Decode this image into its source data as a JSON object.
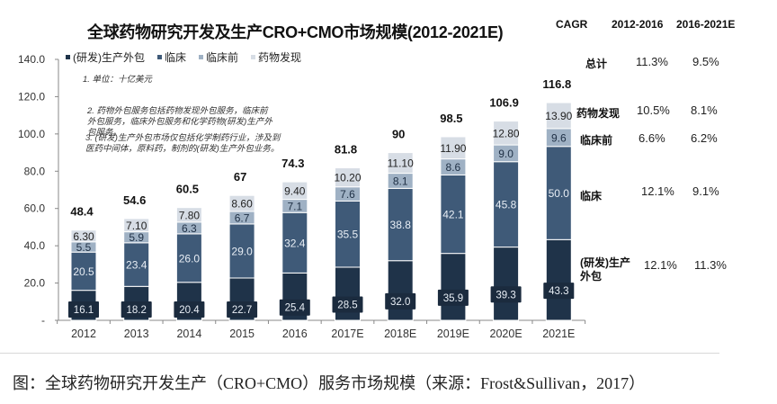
{
  "chart_data": {
    "type": "bar",
    "stacked": true,
    "title": "全球药物研究开发及生产CRO+CMO市场规模(2012-2021E)",
    "xlabel": "",
    "ylabel": "",
    "ylim": [
      0,
      140
    ],
    "yticks": [
      "-",
      "20.0",
      "40.0",
      "60.0",
      "80.0",
      "100.0",
      "120.0",
      "140.0"
    ],
    "grid": false,
    "legend_position": "top-left",
    "categories": [
      "2012",
      "2013",
      "2014",
      "2015",
      "2016",
      "2017E",
      "2018E",
      "2019E",
      "2020E",
      "2021E"
    ],
    "series": [
      {
        "name": "(研发)生产外包",
        "color": "#1f3349",
        "values": [
          16.1,
          18.2,
          20.4,
          22.7,
          25.4,
          28.5,
          32.0,
          35.9,
          39.3,
          43.3
        ],
        "labels": [
          "16.1",
          "18.2",
          "20.4",
          "22.7",
          "25.4",
          "28.5",
          "32.0",
          "35.9",
          "39.3",
          "43.3"
        ]
      },
      {
        "name": "临床",
        "color": "#3f5a78",
        "values": [
          20.5,
          23.4,
          26.0,
          29.0,
          32.4,
          35.5,
          38.8,
          42.1,
          45.8,
          50.0
        ],
        "labels": [
          "20.5",
          "23.4",
          "26.0",
          "29.0",
          "32.4",
          "35.5",
          "38.8",
          "42.1",
          "45.8",
          "50.0"
        ]
      },
      {
        "name": "临床前",
        "color": "#9fb1c4",
        "values": [
          5.5,
          5.9,
          6.3,
          6.7,
          7.1,
          7.6,
          8.1,
          8.6,
          9.0,
          9.6
        ],
        "labels": [
          "5.5",
          "5.9",
          "6.3",
          "6.7",
          "7.1",
          "7.6",
          "8.1",
          "8.6",
          "9.0",
          "9.6"
        ]
      },
      {
        "name": "药物发现",
        "color": "#d7dde5",
        "values": [
          6.3,
          7.1,
          7.8,
          8.6,
          9.4,
          10.2,
          11.1,
          11.9,
          12.8,
          13.9
        ],
        "labels": [
          "6.30",
          "7.10",
          "7.80",
          "8.60",
          "9.40",
          "10.20",
          "11.10",
          "11.90",
          "12.80",
          "13.90"
        ]
      }
    ],
    "totals": [
      "48.4",
      "54.6",
      "60.5",
      "67",
      "74.3",
      "81.8",
      "90",
      "98.5",
      "106.9",
      "116.8"
    ],
    "annotations": [
      "1. 单位：十亿美元",
      "2. 药物外包服务包括药物发现外包服务，临床前外包服务，临床外包服务和化学药物(研发)生产外包服务。",
      "3. (研发)生产外包市场仅包括化学制药行业，涉及到医药中间体，原料药，制剂的(研发)生产外包业务。"
    ],
    "cagr_table": {
      "headers": [
        "CAGR",
        "2012-2016",
        "2016-2021E"
      ],
      "rows": [
        {
          "label": "总计",
          "v1": "11.3%",
          "v2": "9.5%"
        },
        {
          "label": "药物发现",
          "v1": "10.5%",
          "v2": "8.1%"
        },
        {
          "label": "临床前",
          "v1": "6.6%",
          "v2": "6.2%"
        },
        {
          "label": "临床",
          "v1": "12.1%",
          "v2": "9.1%"
        },
        {
          "label": "(研发)生产外包",
          "v1": "12.1%",
          "v2": "11.3%"
        }
      ]
    }
  },
  "caption": "图：全球药物研究开发生产（CRO+CMO）服务市场规模（来源：Frost&Sullivan，2017）"
}
